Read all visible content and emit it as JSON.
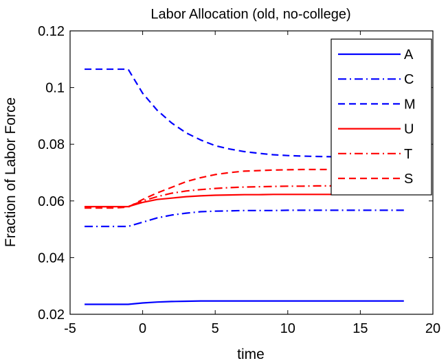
{
  "chart_data": {
    "type": "line",
    "title": "Labor Allocation (old, no-college)",
    "xlabel": "time",
    "ylabel": "Fraction of Labor Force",
    "xlim": [
      -5,
      20
    ],
    "ylim": [
      0.02,
      0.12
    ],
    "xticks": [
      -5,
      0,
      5,
      10,
      15,
      20
    ],
    "yticks": [
      0.02,
      0.04,
      0.06,
      0.08,
      0.1,
      0.12
    ],
    "xtick_labels": [
      "-5",
      "0",
      "5",
      "10",
      "15",
      "20"
    ],
    "ytick_labels": [
      "0.02",
      "0.04",
      "0.06",
      "0.08",
      "0.1",
      "0.12"
    ],
    "grid": false,
    "legend_position": "top-right",
    "x": [
      -4,
      -3,
      -2,
      -1,
      0,
      1,
      2,
      3,
      4,
      5,
      6,
      7,
      8,
      9,
      10,
      11,
      12,
      13,
      14,
      15,
      16,
      17,
      18
    ],
    "series": [
      {
        "name": "A",
        "color": "#0000ff",
        "style": "solid",
        "values": [
          0.0235,
          0.0235,
          0.0235,
          0.0235,
          0.024,
          0.0243,
          0.0245,
          0.0246,
          0.0247,
          0.0247,
          0.0247,
          0.0247,
          0.0247,
          0.0247,
          0.0247,
          0.0247,
          0.0247,
          0.0247,
          0.0247,
          0.0247,
          0.0247,
          0.0247,
          0.0247
        ]
      },
      {
        "name": "C",
        "color": "#0000ff",
        "style": "dashdot",
        "values": [
          0.051,
          0.051,
          0.051,
          0.051,
          0.0525,
          0.054,
          0.055,
          0.0557,
          0.0562,
          0.0564,
          0.0565,
          0.0566,
          0.0566,
          0.0566,
          0.0567,
          0.0567,
          0.0567,
          0.0567,
          0.0567,
          0.0567,
          0.0567,
          0.0567,
          0.0567
        ]
      },
      {
        "name": "M",
        "color": "#0000ff",
        "style": "dashed",
        "values": [
          0.1065,
          0.1065,
          0.1065,
          0.1065,
          0.098,
          0.092,
          0.0875,
          0.084,
          0.0815,
          0.0795,
          0.0783,
          0.0774,
          0.0768,
          0.0763,
          0.076,
          0.0758,
          0.0757,
          0.0756,
          0.0755,
          0.0755,
          0.0755,
          0.0755,
          0.0755
        ]
      },
      {
        "name": "U",
        "color": "#ff0000",
        "style": "solid",
        "values": [
          0.058,
          0.058,
          0.058,
          0.058,
          0.0595,
          0.0605,
          0.061,
          0.0615,
          0.0618,
          0.062,
          0.0621,
          0.0622,
          0.0622,
          0.0623,
          0.0623,
          0.0623,
          0.0623,
          0.0623,
          0.0623,
          0.0623,
          0.0623,
          0.0623,
          0.0623
        ]
      },
      {
        "name": "T",
        "color": "#ff0000",
        "style": "dashdot",
        "values": [
          0.058,
          0.058,
          0.058,
          0.058,
          0.06,
          0.0615,
          0.0627,
          0.0635,
          0.064,
          0.0644,
          0.0647,
          0.0649,
          0.065,
          0.0651,
          0.0652,
          0.0652,
          0.0653,
          0.0653,
          0.0653,
          0.0653,
          0.0653,
          0.0653,
          0.0653
        ]
      },
      {
        "name": "S",
        "color": "#ff0000",
        "style": "dashed",
        "values": [
          0.0575,
          0.0575,
          0.0575,
          0.0578,
          0.0605,
          0.0628,
          0.0648,
          0.0668,
          0.0682,
          0.0693,
          0.07,
          0.0705,
          0.0707,
          0.0709,
          0.071,
          0.0711,
          0.0711,
          0.0711,
          0.0712,
          0.0712,
          0.0712,
          0.0712,
          0.0712
        ]
      }
    ]
  }
}
